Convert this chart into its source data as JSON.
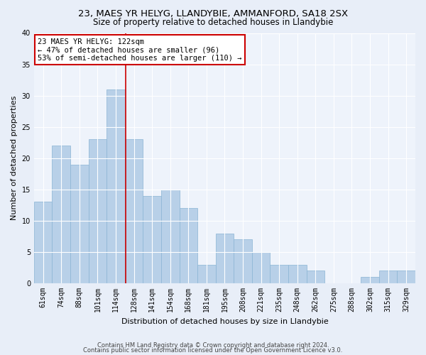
{
  "title1": "23, MAES YR HELYG, LLANDYBIE, AMMANFORD, SA18 2SX",
  "title2": "Size of property relative to detached houses in Llandybie",
  "xlabel": "Distribution of detached houses by size in Llandybie",
  "ylabel": "Number of detached properties",
  "categories": [
    "61sqm",
    "74sqm",
    "88sqm",
    "101sqm",
    "114sqm",
    "128sqm",
    "141sqm",
    "154sqm",
    "168sqm",
    "181sqm",
    "195sqm",
    "208sqm",
    "221sqm",
    "235sqm",
    "248sqm",
    "262sqm",
    "275sqm",
    "288sqm",
    "302sqm",
    "315sqm",
    "329sqm"
  ],
  "values": [
    13,
    22,
    19,
    23,
    31,
    23,
    14,
    15,
    12,
    3,
    8,
    7,
    5,
    3,
    3,
    2,
    0,
    0,
    1,
    2,
    2
  ],
  "bar_color": "#b8d0e8",
  "bar_edge_color": "#8ab4d4",
  "red_line_index": 4.55,
  "annotation_line1": "23 MAES YR HELYG: 122sqm",
  "annotation_line2": "← 47% of detached houses are smaller (96)",
  "annotation_line3": "53% of semi-detached houses are larger (110) →",
  "annotation_box_color": "#ffffff",
  "annotation_box_edge": "#cc0000",
  "ylim": [
    0,
    40
  ],
  "yticks": [
    0,
    5,
    10,
    15,
    20,
    25,
    30,
    35,
    40
  ],
  "footer1": "Contains HM Land Registry data © Crown copyright and database right 2024.",
  "footer2": "Contains public sector information licensed under the Open Government Licence v3.0.",
  "bg_color": "#e8eef8",
  "plot_bg_color": "#eef3fb",
  "grid_color": "#ffffff",
  "title_fontsize": 9.5,
  "subtitle_fontsize": 8.5,
  "tick_fontsize": 7,
  "ylabel_fontsize": 8,
  "xlabel_fontsize": 8,
  "footer_fontsize": 6,
  "annot_fontsize": 7.5
}
